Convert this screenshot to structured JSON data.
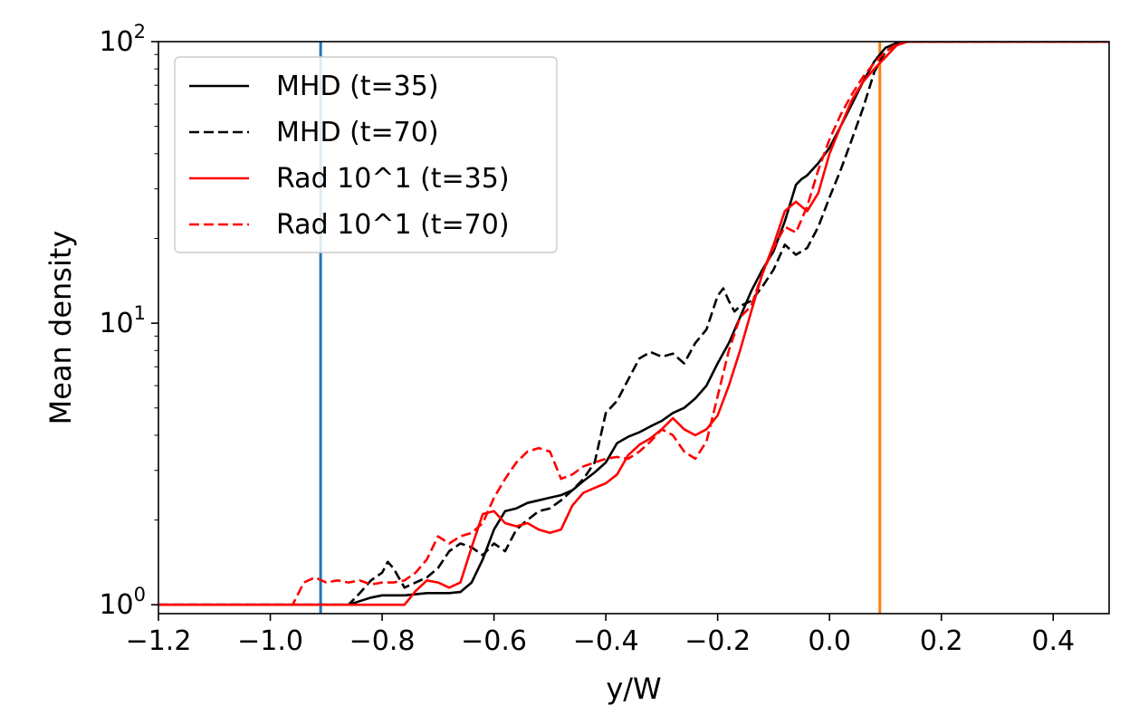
{
  "chart_data": {
    "type": "line",
    "title": "",
    "xlabel": "y/W",
    "ylabel": "Mean density",
    "xlim": [
      -1.2,
      0.5
    ],
    "ylim": [
      0.93,
      100
    ],
    "yscale": "log",
    "grid": false,
    "legend_position": "top-left",
    "x_ticks": [
      {
        "value": -1.2,
        "label": "−1.2"
      },
      {
        "value": -1.0,
        "label": "−1.0"
      },
      {
        "value": -0.8,
        "label": "−0.8"
      },
      {
        "value": -0.6,
        "label": "−0.6"
      },
      {
        "value": -0.4,
        "label": "−0.4"
      },
      {
        "value": -0.2,
        "label": "−0.2"
      },
      {
        "value": 0.0,
        "label": "0.0"
      },
      {
        "value": 0.2,
        "label": "0.2"
      },
      {
        "value": 0.4,
        "label": "0.4"
      }
    ],
    "y_ticks": [
      {
        "value": 1,
        "base": "10",
        "exp": "0"
      },
      {
        "value": 10,
        "base": "10",
        "exp": "1"
      },
      {
        "value": 100,
        "base": "10",
        "exp": "2"
      }
    ],
    "vlines": [
      {
        "x": -0.91,
        "color": "#1f77b4"
      },
      {
        "x": 0.09,
        "color": "#ff7f0e"
      }
    ],
    "series": [
      {
        "name": "MHD (t=35)",
        "color": "#000000",
        "dash": "solid",
        "x": [
          -1.2,
          -0.86,
          -0.84,
          -0.82,
          -0.8,
          -0.78,
          -0.76,
          -0.74,
          -0.72,
          -0.7,
          -0.68,
          -0.66,
          -0.64,
          -0.62,
          -0.6,
          -0.58,
          -0.56,
          -0.54,
          -0.52,
          -0.5,
          -0.48,
          -0.46,
          -0.44,
          -0.42,
          -0.4,
          -0.38,
          -0.36,
          -0.34,
          -0.32,
          -0.3,
          -0.28,
          -0.26,
          -0.24,
          -0.22,
          -0.2,
          -0.18,
          -0.16,
          -0.14,
          -0.12,
          -0.1,
          -0.08,
          -0.06,
          -0.05,
          -0.04,
          -0.02,
          0.0,
          0.02,
          0.04,
          0.06,
          0.08,
          0.09,
          0.1,
          0.12,
          0.14,
          0.16,
          0.2,
          0.5
        ],
        "y": [
          1.0,
          1.0,
          1.03,
          1.06,
          1.08,
          1.08,
          1.08,
          1.09,
          1.1,
          1.1,
          1.1,
          1.11,
          1.2,
          1.45,
          1.85,
          2.15,
          2.2,
          2.3,
          2.35,
          2.4,
          2.45,
          2.55,
          2.75,
          2.95,
          3.2,
          3.75,
          3.95,
          4.1,
          4.3,
          4.5,
          4.8,
          5.0,
          5.4,
          6.0,
          7.2,
          8.5,
          10.5,
          13.0,
          15.5,
          18.0,
          23.0,
          31.0,
          32.5,
          33.5,
          37.0,
          42.0,
          50.0,
          60.0,
          72.0,
          85.0,
          90.0,
          95.0,
          99.0,
          100.0,
          100.0,
          100.0,
          100.0
        ]
      },
      {
        "name": "MHD (t=70)",
        "color": "#000000",
        "dash": "dashed",
        "x": [
          -1.2,
          -0.86,
          -0.84,
          -0.82,
          -0.8,
          -0.79,
          -0.78,
          -0.76,
          -0.74,
          -0.72,
          -0.7,
          -0.68,
          -0.66,
          -0.64,
          -0.62,
          -0.6,
          -0.58,
          -0.56,
          -0.54,
          -0.52,
          -0.5,
          -0.48,
          -0.46,
          -0.44,
          -0.42,
          -0.4,
          -0.38,
          -0.36,
          -0.34,
          -0.32,
          -0.3,
          -0.28,
          -0.26,
          -0.24,
          -0.22,
          -0.2,
          -0.19,
          -0.18,
          -0.17,
          -0.16,
          -0.14,
          -0.12,
          -0.1,
          -0.08,
          -0.06,
          -0.04,
          -0.02,
          0.0,
          0.02,
          0.04,
          0.06,
          0.08,
          0.1,
          0.12,
          0.14,
          0.16,
          0.5
        ],
        "y": [
          1.0,
          1.0,
          1.1,
          1.22,
          1.3,
          1.42,
          1.35,
          1.15,
          1.2,
          1.25,
          1.35,
          1.55,
          1.65,
          1.6,
          1.5,
          1.65,
          1.55,
          1.85,
          2.0,
          2.15,
          2.2,
          2.35,
          2.55,
          2.8,
          3.2,
          4.8,
          5.3,
          6.3,
          7.5,
          7.9,
          7.6,
          7.8,
          7.2,
          8.5,
          9.5,
          12.5,
          13.3,
          12.0,
          11.0,
          11.5,
          12.0,
          13.5,
          15.5,
          19.0,
          17.5,
          18.5,
          22.0,
          28.0,
          35.0,
          45.0,
          58.0,
          78.0,
          92.0,
          98.0,
          100.0,
          100.0,
          100.0
        ]
      },
      {
        "name": "Rad 10^1 (t=35)",
        "color": "#ff0000",
        "dash": "solid",
        "x": [
          -1.2,
          -0.76,
          -0.74,
          -0.72,
          -0.7,
          -0.68,
          -0.66,
          -0.64,
          -0.62,
          -0.6,
          -0.58,
          -0.56,
          -0.54,
          -0.52,
          -0.5,
          -0.48,
          -0.46,
          -0.44,
          -0.42,
          -0.4,
          -0.38,
          -0.36,
          -0.34,
          -0.32,
          -0.3,
          -0.28,
          -0.26,
          -0.24,
          -0.22,
          -0.2,
          -0.18,
          -0.16,
          -0.14,
          -0.12,
          -0.1,
          -0.08,
          -0.06,
          -0.04,
          -0.02,
          0.0,
          0.02,
          0.04,
          0.06,
          0.08,
          0.1,
          0.12,
          0.14,
          0.16,
          0.5
        ],
        "y": [
          1.0,
          1.0,
          1.12,
          1.22,
          1.2,
          1.15,
          1.2,
          1.6,
          2.1,
          2.15,
          1.95,
          1.9,
          1.95,
          1.85,
          1.8,
          1.85,
          2.25,
          2.5,
          2.6,
          2.7,
          2.9,
          3.4,
          3.7,
          3.9,
          4.2,
          4.6,
          4.2,
          4.0,
          4.2,
          4.7,
          6.0,
          8.0,
          11.0,
          15.0,
          19.0,
          25.0,
          27.0,
          25.0,
          29.0,
          40.0,
          50.0,
          62.0,
          72.0,
          80.0,
          88.0,
          97.0,
          100.0,
          100.0,
          100.0
        ]
      },
      {
        "name": "Rad 10^1 (t=70)",
        "color": "#ff0000",
        "dash": "dashed",
        "x": [
          -1.2,
          -0.96,
          -0.94,
          -0.92,
          -0.9,
          -0.88,
          -0.86,
          -0.84,
          -0.82,
          -0.8,
          -0.78,
          -0.76,
          -0.74,
          -0.72,
          -0.7,
          -0.68,
          -0.66,
          -0.64,
          -0.62,
          -0.6,
          -0.58,
          -0.56,
          -0.54,
          -0.52,
          -0.5,
          -0.48,
          -0.46,
          -0.44,
          -0.42,
          -0.4,
          -0.38,
          -0.36,
          -0.34,
          -0.32,
          -0.3,
          -0.28,
          -0.26,
          -0.24,
          -0.22,
          -0.2,
          -0.18,
          -0.16,
          -0.14,
          -0.12,
          -0.1,
          -0.08,
          -0.06,
          -0.04,
          -0.02,
          0.0,
          0.02,
          0.04,
          0.06,
          0.08,
          0.1,
          0.12,
          0.14,
          0.16,
          0.5
        ],
        "y": [
          1.0,
          1.0,
          1.2,
          1.25,
          1.2,
          1.22,
          1.2,
          1.22,
          1.18,
          1.2,
          1.2,
          1.22,
          1.3,
          1.45,
          1.75,
          1.65,
          1.75,
          1.8,
          1.95,
          2.4,
          2.8,
          3.2,
          3.5,
          3.6,
          3.5,
          2.8,
          2.9,
          3.1,
          3.2,
          3.3,
          3.35,
          3.3,
          3.5,
          3.8,
          4.2,
          4.0,
          3.5,
          3.3,
          3.8,
          5.5,
          8.0,
          10.5,
          11.5,
          15.0,
          18.5,
          22.0,
          21.0,
          26.0,
          35.0,
          45.0,
          55.0,
          65.0,
          75.0,
          84.0,
          92.0,
          98.0,
          100.0,
          100.0,
          100.0
        ]
      }
    ]
  }
}
